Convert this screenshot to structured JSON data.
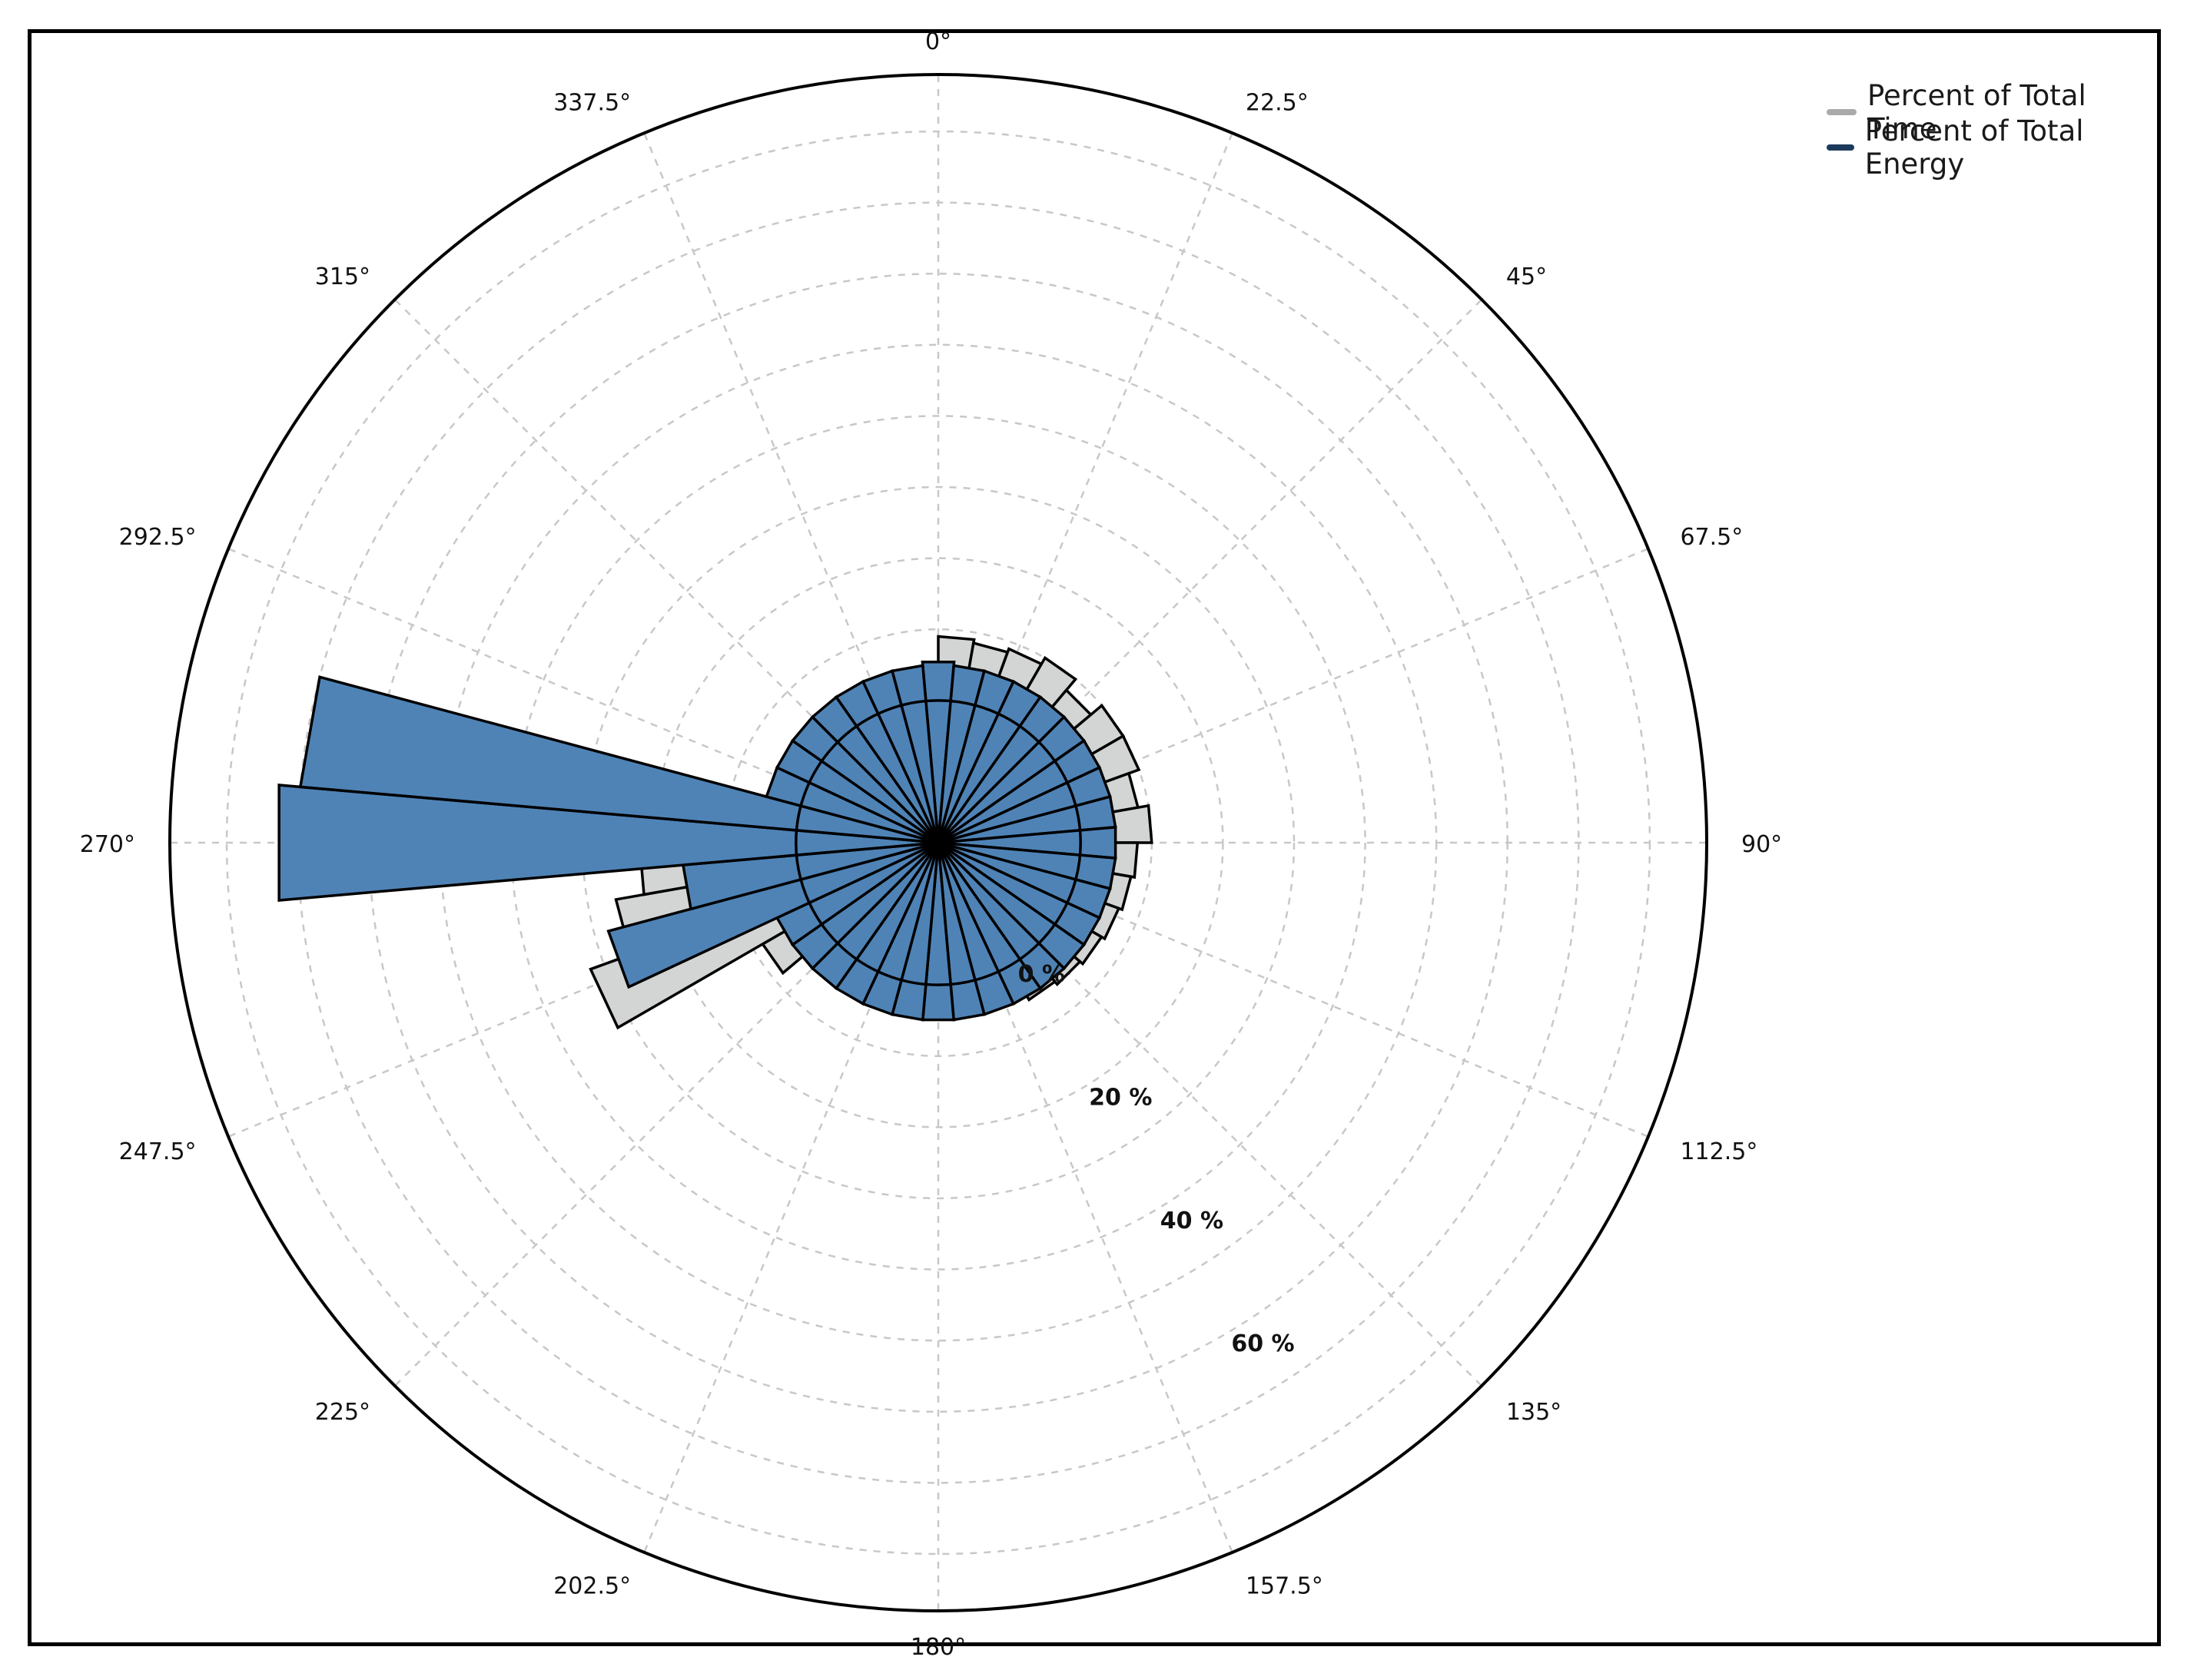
{
  "chart_data": {
    "type": "polar-bar",
    "title": "",
    "angle_tick_labels": [
      "0°",
      "22.5°",
      "45°",
      "67.5°",
      "90°",
      "112.5°",
      "135°",
      "157.5°",
      "180°",
      "202.5°",
      "225°",
      "247.5°",
      "270°",
      "292.5°",
      "315°",
      "337.5°"
    ],
    "radial_tick_labels": [
      "0 %",
      "20 %",
      "40 %",
      "60 %"
    ],
    "radial_range": [
      -20,
      88
    ],
    "grid": true,
    "legend_position": "top-right",
    "sectors": 36,
    "sector_width_deg": 10,
    "series": [
      {
        "name": "Percent of Total Time",
        "color": "#d3d5d4",
        "bar_center_deg": [
          5,
          15,
          25,
          35,
          45,
          55,
          65,
          75,
          85,
          95,
          105,
          115,
          125,
          135,
          145,
          155,
          165,
          175,
          185,
          195,
          205,
          215,
          225,
          235,
          245,
          255,
          265,
          275,
          285,
          295,
          305,
          315,
          325,
          335,
          345,
          355
        ],
        "values": [
          9,
          8.5,
          9,
          10,
          8,
          10,
          10,
          8.5,
          10,
          8,
          7.5,
          7,
          6.5,
          6,
          5.5,
          4.5,
          4,
          4,
          4,
          4,
          3.5,
          3.5,
          3,
          8.5,
          32,
          26,
          22,
          8,
          4,
          4,
          3,
          2,
          2,
          2,
          2,
          1.5
        ]
      },
      {
        "name": "Percent of Total Energy",
        "color": "#4f83b6",
        "bar_center_deg": [
          0,
          10,
          20,
          30,
          40,
          50,
          60,
          70,
          80,
          90,
          100,
          110,
          120,
          130,
          140,
          150,
          160,
          170,
          180,
          190,
          200,
          210,
          220,
          230,
          240,
          250,
          260,
          270,
          280,
          290,
          300,
          310,
          320,
          330,
          340,
          350
        ],
        "values": [
          5.5,
          5,
          5,
          5,
          5,
          5,
          5,
          5,
          5,
          5,
          5,
          5,
          5,
          5,
          5,
          5,
          5,
          5,
          5,
          5,
          5,
          5,
          5,
          5,
          5,
          28,
          16,
          73,
          70,
          5,
          5,
          5,
          5,
          5,
          5,
          5
        ]
      }
    ]
  }
}
